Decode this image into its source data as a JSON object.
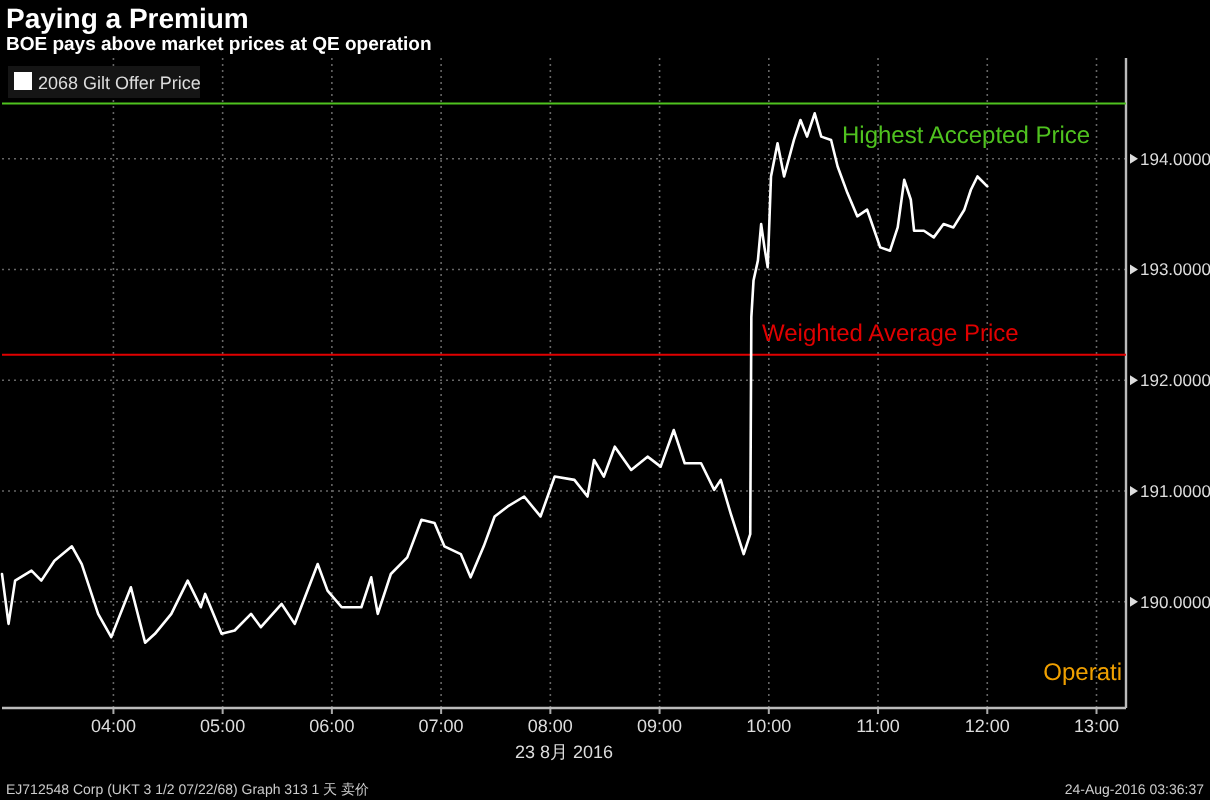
{
  "chart_data": {
    "type": "line",
    "title": "Paying a Premium",
    "subtitle": "BOE pays above market prices at QE operation",
    "xlabel": "23 8月 2016",
    "xlim": [
      2.98,
      13.27
    ],
    "xticks": [
      {
        "value": 4,
        "label": "04:00"
      },
      {
        "value": 5,
        "label": "05:00"
      },
      {
        "value": 6,
        "label": "06:00"
      },
      {
        "value": 7,
        "label": "07:00"
      },
      {
        "value": 8,
        "label": "08:00"
      },
      {
        "value": 9,
        "label": "09:00"
      },
      {
        "value": 10,
        "label": "10:00"
      },
      {
        "value": 11,
        "label": "11:00"
      },
      {
        "value": 12,
        "label": "12:00"
      },
      {
        "value": 13,
        "label": "13:00"
      }
    ],
    "ylim": [
      189.04,
      194.91
    ],
    "yticks": [
      {
        "value": 190,
        "label": "190.0000"
      },
      {
        "value": 191,
        "label": "191.0000"
      },
      {
        "value": 192,
        "label": "192.0000"
      },
      {
        "value": 193,
        "label": "193.0000"
      },
      {
        "value": 194,
        "label": "194.0000"
      }
    ],
    "grid": true,
    "legend": "top left",
    "marker": "none",
    "line_style": "solid",
    "series": [
      {
        "name": "2068 Gilt Offer Price",
        "color": "#ffffff",
        "x": [
          2.98,
          3.04,
          3.1,
          3.25,
          3.34,
          3.46,
          3.62,
          3.71,
          3.86,
          3.98,
          4.16,
          4.29,
          4.38,
          4.53,
          4.68,
          4.8,
          4.84,
          4.99,
          5.11,
          5.26,
          5.35,
          5.54,
          5.66,
          5.87,
          5.96,
          6.09,
          6.27,
          6.36,
          6.42,
          6.54,
          6.69,
          6.82,
          6.94,
          7.03,
          7.18,
          7.27,
          7.39,
          7.49,
          7.61,
          7.76,
          7.91,
          8.04,
          8.22,
          8.34,
          8.4,
          8.49,
          8.59,
          8.74,
          8.89,
          9.01,
          9.13,
          9.23,
          9.38,
          9.5,
          9.56,
          9.65,
          9.77,
          9.83,
          9.84,
          9.86,
          9.9,
          9.93,
          9.96,
          9.99,
          10.02,
          10.08,
          10.14,
          10.23,
          10.29,
          10.35,
          10.42,
          10.48,
          10.57,
          10.63,
          10.72,
          10.81,
          10.9,
          11.02,
          11.11,
          11.18,
          11.24,
          11.3,
          11.33,
          11.42,
          11.51,
          11.6,
          11.69,
          11.79,
          11.85,
          11.91,
          12.0
        ],
        "values": [
          190.25,
          189.8,
          190.19,
          190.28,
          190.19,
          190.37,
          190.5,
          190.34,
          189.89,
          189.68,
          190.13,
          189.63,
          189.71,
          189.89,
          190.19,
          189.95,
          190.07,
          189.71,
          189.74,
          189.89,
          189.77,
          189.98,
          189.8,
          190.34,
          190.1,
          189.95,
          189.95,
          190.22,
          189.89,
          190.25,
          190.4,
          190.74,
          190.71,
          190.5,
          190.43,
          190.22,
          190.5,
          190.77,
          190.86,
          190.95,
          190.77,
          191.13,
          191.1,
          190.95,
          191.28,
          191.13,
          191.4,
          191.19,
          191.31,
          191.22,
          191.55,
          191.25,
          191.25,
          191.01,
          191.1,
          190.8,
          190.43,
          190.61,
          192.57,
          192.9,
          193.08,
          193.41,
          193.2,
          193.02,
          193.84,
          194.14,
          193.84,
          194.17,
          194.35,
          194.2,
          194.41,
          194.2,
          194.17,
          193.93,
          193.69,
          193.48,
          193.54,
          193.2,
          193.17,
          193.38,
          193.81,
          193.63,
          193.35,
          193.35,
          193.29,
          193.41,
          193.38,
          193.54,
          193.72,
          193.84,
          193.75
        ]
      }
    ],
    "ref_lines": [
      {
        "axis": "y",
        "value": 194.5,
        "label": "Highest Accepted Price",
        "color": "#4fc21f"
      },
      {
        "axis": "y",
        "value": 192.23,
        "label": "Weighted Average Price",
        "color": "#e00000"
      }
    ],
    "annotations": [
      "Operati",
      "EJ712548 Corp (UKT 3 1/2 07/22/68) Graph 313 1 天 卖价",
      "24-Aug-2016 03:36:37"
    ]
  }
}
